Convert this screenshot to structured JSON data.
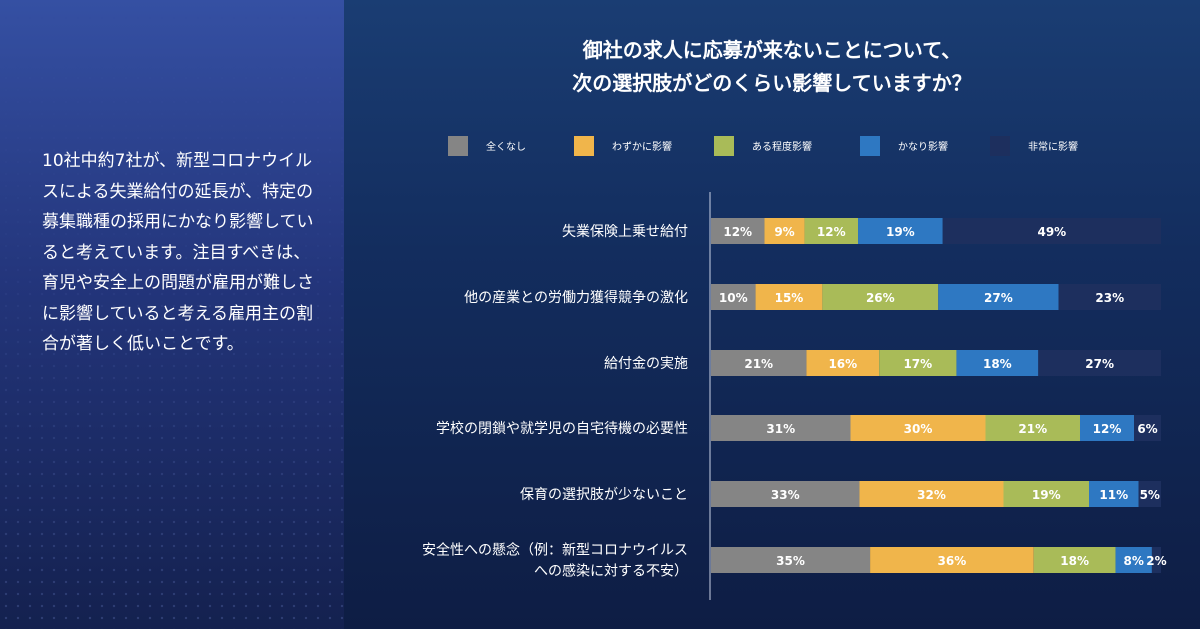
{
  "summary": "10社中約7社が、新型コロナウイルスによる失業給付の延長が、特定の募集職種の採用にかなり影響していると考えています。注目すべきは、育児や安全上の問題が雇用が難しさに影響していると考える雇用主の割合が著しく低いことです。",
  "chart_data": {
    "type": "bar",
    "orientation": "horizontal-stacked-100",
    "title": [
      "御社の求人に応募が来ないことについて、",
      "次の選択肢がどのくらい影響していますか？"
    ],
    "legend_position": "top",
    "categories": [
      [
        "失業保険上乗せ給付"
      ],
      [
        "他の産業との労働力獲得競争の激化"
      ],
      [
        "給付金の実施"
      ],
      [
        "学校の閉鎖や就学児の自宅待機の必要性"
      ],
      [
        "保育の選択肢が少ないこと"
      ],
      [
        "安全性への懸念（例：新型コロナウイルス",
        "への感染に対する不安）"
      ]
    ],
    "series": [
      {
        "name": "全くなし",
        "color": "#858585",
        "labelColor": "#ffffff",
        "values": [
          12,
          10,
          21,
          31,
          33,
          35
        ]
      },
      {
        "name": "わずかに影響",
        "color": "#f0b54b",
        "labelColor": "#ffffff",
        "values": [
          9,
          15,
          16,
          30,
          32,
          36
        ]
      },
      {
        "name": "ある程度影響",
        "color": "#a9bb58",
        "labelColor": "#ffffff",
        "values": [
          12,
          26,
          17,
          21,
          19,
          18
        ]
      },
      {
        "name": "かなり影響",
        "color": "#2e78c2",
        "labelColor": "#ffffff",
        "values": [
          19,
          27,
          18,
          12,
          11,
          8
        ]
      },
      {
        "name": "非常に影響",
        "color": "#1d2f5e",
        "labelColor": "#ffffff",
        "values": [
          49,
          23,
          27,
          6,
          5,
          2
        ]
      }
    ],
    "value_suffix": "%"
  }
}
